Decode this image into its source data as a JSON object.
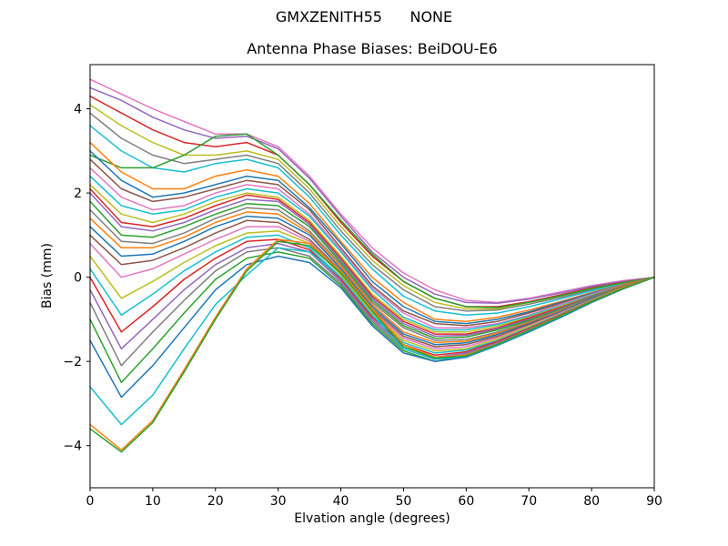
{
  "figure": {
    "suptitle": "GMXZENITH55      NONE",
    "title": "Antenna Phase Biases: BeiDOU-E6",
    "xlabel": "Elvation angle (degrees)",
    "ylabel": "Bias (mm)",
    "background": "#ffffff",
    "frame_color": "#000000"
  },
  "chart_data": {
    "type": "line",
    "title": "Antenna Phase Biases: BeiDOU-E6",
    "suptitle": "GMXZENITH55      NONE",
    "xlabel": "Elvation angle (degrees)",
    "ylabel": "Bias (mm)",
    "xlim": [
      0,
      90
    ],
    "ylim": [
      -5.0,
      5.05
    ],
    "xticks": [
      0,
      10,
      20,
      30,
      40,
      50,
      60,
      70,
      80,
      90
    ],
    "yticks": [
      -4,
      -2,
      0,
      2,
      4
    ],
    "grid": false,
    "legend_position": "none",
    "x": [
      0,
      5,
      10,
      15,
      20,
      25,
      30,
      35,
      40,
      45,
      50,
      55,
      60,
      65,
      70,
      75,
      80,
      85,
      90
    ],
    "series": [
      {
        "color": "#e377c2",
        "values": [
          4.7,
          4.35,
          4.0,
          3.7,
          3.4,
          3.4,
          3.1,
          2.4,
          1.5,
          0.7,
          0.1,
          -0.3,
          -0.55,
          -0.6,
          -0.5,
          -0.35,
          -0.2,
          -0.08,
          0.0
        ]
      },
      {
        "color": "#9467bd",
        "values": [
          4.5,
          4.2,
          3.8,
          3.5,
          3.3,
          3.35,
          3.05,
          2.35,
          1.45,
          0.6,
          0.0,
          -0.4,
          -0.6,
          -0.62,
          -0.52,
          -0.38,
          -0.22,
          -0.1,
          0.0
        ]
      },
      {
        "color": "#d62728",
        "values": [
          4.3,
          3.9,
          3.5,
          3.2,
          3.1,
          3.2,
          2.9,
          2.2,
          1.3,
          0.5,
          -0.1,
          -0.5,
          -0.7,
          -0.7,
          -0.58,
          -0.42,
          -0.25,
          -0.12,
          0.0
        ]
      },
      {
        "color": "#bcbd22",
        "values": [
          4.1,
          3.6,
          3.2,
          2.9,
          2.9,
          3.0,
          2.8,
          2.1,
          1.2,
          0.4,
          -0.2,
          -0.6,
          -0.75,
          -0.75,
          -0.6,
          -0.45,
          -0.28,
          -0.13,
          0.0
        ]
      },
      {
        "color": "#7f7f7f",
        "values": [
          3.9,
          3.3,
          2.9,
          2.7,
          2.8,
          2.9,
          2.7,
          2.0,
          1.1,
          0.3,
          -0.3,
          -0.7,
          -0.8,
          -0.78,
          -0.64,
          -0.48,
          -0.3,
          -0.14,
          0.0
        ]
      },
      {
        "color": "#17becf",
        "values": [
          3.6,
          3.0,
          2.6,
          2.5,
          2.7,
          2.8,
          2.6,
          1.9,
          1.0,
          0.2,
          -0.45,
          -0.8,
          -0.9,
          -0.85,
          -0.7,
          -0.52,
          -0.32,
          -0.15,
          0.0
        ]
      },
      {
        "color": "#2ca02c",
        "values": [
          2.9,
          2.6,
          2.6,
          2.9,
          3.35,
          3.4,
          2.9,
          2.2,
          1.35,
          0.55,
          -0.1,
          -0.5,
          -0.7,
          -0.72,
          -0.6,
          -0.44,
          -0.27,
          -0.13,
          0.0
        ]
      },
      {
        "color": "#ff7f0e",
        "values": [
          3.2,
          2.5,
          2.1,
          2.1,
          2.4,
          2.55,
          2.4,
          1.75,
          0.85,
          0.0,
          -0.6,
          -1.0,
          -1.05,
          -0.95,
          -0.78,
          -0.58,
          -0.36,
          -0.17,
          0.0
        ]
      },
      {
        "color": "#1f77b4",
        "values": [
          3.0,
          2.3,
          1.9,
          2.0,
          2.2,
          2.4,
          2.3,
          1.65,
          0.8,
          -0.1,
          -0.7,
          -1.05,
          -1.1,
          -1.0,
          -0.82,
          -0.6,
          -0.38,
          -0.18,
          0.0
        ]
      },
      {
        "color": "#8c564b",
        "values": [
          2.8,
          2.1,
          1.8,
          1.9,
          2.1,
          2.3,
          2.2,
          1.6,
          0.7,
          -0.2,
          -0.8,
          -1.1,
          -1.15,
          -1.05,
          -0.85,
          -0.62,
          -0.4,
          -0.18,
          0.0
        ]
      },
      {
        "color": "#e377c2",
        "values": [
          2.6,
          1.9,
          1.6,
          1.7,
          2.0,
          2.2,
          2.1,
          1.5,
          0.65,
          -0.25,
          -0.85,
          -1.2,
          -1.2,
          -1.1,
          -0.9,
          -0.65,
          -0.4,
          -0.19,
          0.0
        ]
      },
      {
        "color": "#17becf",
        "values": [
          2.4,
          1.7,
          1.5,
          1.6,
          1.9,
          2.1,
          2.0,
          1.45,
          0.6,
          -0.3,
          -0.95,
          -1.25,
          -1.25,
          -1.12,
          -0.92,
          -0.68,
          -0.42,
          -0.2,
          0.0
        ]
      },
      {
        "color": "#bcbd22",
        "values": [
          2.2,
          1.5,
          1.3,
          1.5,
          1.8,
          2.0,
          1.9,
          1.35,
          0.5,
          -0.4,
          -1.0,
          -1.3,
          -1.3,
          -1.16,
          -0.95,
          -0.7,
          -0.44,
          -0.2,
          0.0
        ]
      },
      {
        "color": "#d62728",
        "values": [
          2.1,
          1.3,
          1.2,
          1.4,
          1.7,
          1.95,
          1.85,
          1.3,
          0.45,
          -0.45,
          -1.05,
          -1.35,
          -1.35,
          -1.2,
          -0.97,
          -0.72,
          -0.45,
          -0.21,
          0.0
        ]
      },
      {
        "color": "#9467bd",
        "values": [
          2.0,
          1.2,
          1.1,
          1.3,
          1.6,
          1.85,
          1.8,
          1.25,
          0.4,
          -0.5,
          -1.1,
          -1.4,
          -1.38,
          -1.22,
          -1.0,
          -0.74,
          -0.46,
          -0.22,
          0.0
        ]
      },
      {
        "color": "#2ca02c",
        "values": [
          1.8,
          1.0,
          0.95,
          1.2,
          1.5,
          1.75,
          1.7,
          1.2,
          0.35,
          -0.55,
          -1.15,
          -1.45,
          -1.42,
          -1.25,
          -1.02,
          -0.76,
          -0.47,
          -0.22,
          0.0
        ]
      },
      {
        "color": "#7f7f7f",
        "values": [
          1.6,
          0.85,
          0.8,
          1.05,
          1.4,
          1.65,
          1.6,
          1.1,
          0.3,
          -0.6,
          -1.2,
          -1.5,
          -1.48,
          -1.3,
          -1.05,
          -0.78,
          -0.48,
          -0.23,
          0.0
        ]
      },
      {
        "color": "#ff7f0e",
        "values": [
          1.4,
          0.7,
          0.7,
          0.95,
          1.3,
          1.55,
          1.5,
          1.05,
          0.25,
          -0.65,
          -1.3,
          -1.55,
          -1.52,
          -1.33,
          -1.08,
          -0.8,
          -0.5,
          -0.23,
          0.0
        ]
      },
      {
        "color": "#1f77b4",
        "values": [
          1.2,
          0.5,
          0.55,
          0.85,
          1.2,
          1.45,
          1.4,
          1.0,
          0.2,
          -0.7,
          -1.35,
          -1.6,
          -1.56,
          -1.36,
          -1.1,
          -0.82,
          -0.5,
          -0.24,
          0.0
        ]
      },
      {
        "color": "#8c564b",
        "values": [
          1.0,
          0.3,
          0.4,
          0.7,
          1.05,
          1.35,
          1.3,
          0.9,
          0.15,
          -0.75,
          -1.4,
          -1.65,
          -1.6,
          -1.4,
          -1.12,
          -0.84,
          -0.52,
          -0.24,
          0.0
        ]
      },
      {
        "color": "#e377c2",
        "values": [
          0.8,
          0.0,
          0.2,
          0.55,
          0.9,
          1.2,
          1.2,
          0.85,
          0.1,
          -0.8,
          -1.45,
          -1.7,
          -1.65,
          -1.43,
          -1.15,
          -0.85,
          -0.53,
          -0.25,
          0.0
        ]
      },
      {
        "color": "#bcbd22",
        "values": [
          0.5,
          -0.5,
          -0.1,
          0.35,
          0.75,
          1.05,
          1.1,
          0.8,
          0.05,
          -0.85,
          -1.5,
          -1.75,
          -1.7,
          -1.46,
          -1.17,
          -0.87,
          -0.54,
          -0.25,
          0.0
        ]
      },
      {
        "color": "#17becf",
        "values": [
          0.2,
          -0.9,
          -0.4,
          0.15,
          0.6,
          0.95,
          1.0,
          0.7,
          0.0,
          -0.9,
          -1.55,
          -1.8,
          -1.73,
          -1.5,
          -1.2,
          -0.88,
          -0.55,
          -0.26,
          0.0
        ]
      },
      {
        "color": "#d62728",
        "values": [
          0.0,
          -1.3,
          -0.7,
          -0.05,
          0.45,
          0.85,
          0.9,
          0.65,
          -0.05,
          -0.95,
          -1.6,
          -1.85,
          -1.77,
          -1.52,
          -1.22,
          -0.9,
          -0.56,
          -0.26,
          0.0
        ]
      },
      {
        "color": "#9467bd",
        "values": [
          -0.3,
          -1.7,
          -1.0,
          -0.3,
          0.3,
          0.7,
          0.8,
          0.6,
          -0.1,
          -1.0,
          -1.65,
          -1.9,
          -1.8,
          -1.55,
          -1.24,
          -0.92,
          -0.57,
          -0.27,
          0.0
        ]
      },
      {
        "color": "#7f7f7f",
        "values": [
          -0.6,
          -2.1,
          -1.3,
          -0.55,
          0.15,
          0.6,
          0.7,
          0.5,
          -0.15,
          -1.05,
          -1.7,
          -1.95,
          -1.83,
          -1.57,
          -1.26,
          -0.93,
          -0.58,
          -0.27,
          0.0
        ]
      },
      {
        "color": "#2ca02c",
        "values": [
          -1.0,
          -2.5,
          -1.7,
          -0.85,
          -0.05,
          0.45,
          0.6,
          0.45,
          -0.2,
          -1.1,
          -1.75,
          -2.0,
          -1.86,
          -1.6,
          -1.28,
          -0.95,
          -0.59,
          -0.28,
          0.0
        ]
      },
      {
        "color": "#1f77b4",
        "values": [
          -1.5,
          -2.85,
          -2.1,
          -1.2,
          -0.3,
          0.3,
          0.5,
          0.35,
          -0.25,
          -1.15,
          -1.8,
          -2.0,
          -1.9,
          -1.62,
          -1.3,
          -0.96,
          -0.6,
          -0.28,
          0.0
        ]
      },
      {
        "color": "#17becf",
        "values": [
          -2.6,
          -3.5,
          -2.8,
          -1.7,
          -0.65,
          0.05,
          0.7,
          0.6,
          0.0,
          -0.9,
          -1.7,
          -1.95,
          -1.88,
          -1.6,
          -1.27,
          -0.94,
          -0.58,
          -0.27,
          0.0
        ]
      },
      {
        "color": "#ff7f0e",
        "values": [
          -3.5,
          -4.1,
          -3.4,
          -2.2,
          -0.95,
          0.2,
          0.9,
          0.8,
          0.15,
          -0.75,
          -1.6,
          -1.9,
          -1.85,
          -1.58,
          -1.25,
          -0.92,
          -0.57,
          -0.26,
          0.0
        ]
      },
      {
        "color": "#2ca02c",
        "values": [
          -3.6,
          -4.15,
          -3.45,
          -2.25,
          -1.0,
          0.15,
          0.85,
          0.75,
          0.1,
          -0.8,
          -1.65,
          -1.92,
          -1.87,
          -1.59,
          -1.26,
          -0.93,
          -0.58,
          -0.27,
          0.0
        ]
      }
    ]
  }
}
